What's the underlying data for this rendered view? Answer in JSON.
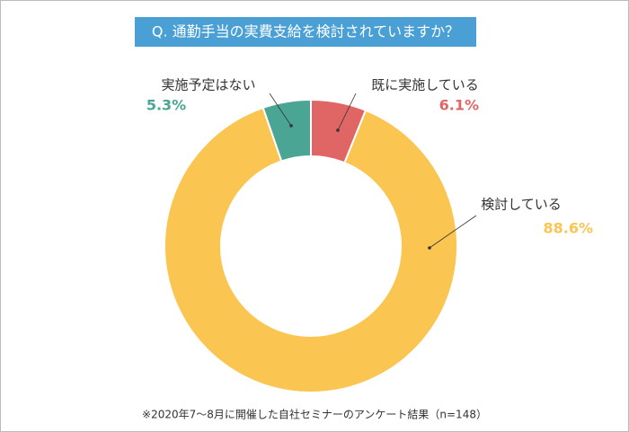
{
  "chart_data": {
    "type": "donut",
    "title": "Q. 通勤手当の実費支給を検討されていますか？",
    "categories": [
      "既に実施している",
      "検討している",
      "実施予定はない"
    ],
    "values": [
      6.1,
      88.6,
      5.3
    ],
    "value_labels": [
      "6.1%",
      "88.6%",
      "5.3%"
    ],
    "colors": [
      "#e06666",
      "#fbc552",
      "#4aa595"
    ],
    "footnote": "※2020年7〜8月に開催した自社セミナーのアンケート結果（n=148）"
  }
}
